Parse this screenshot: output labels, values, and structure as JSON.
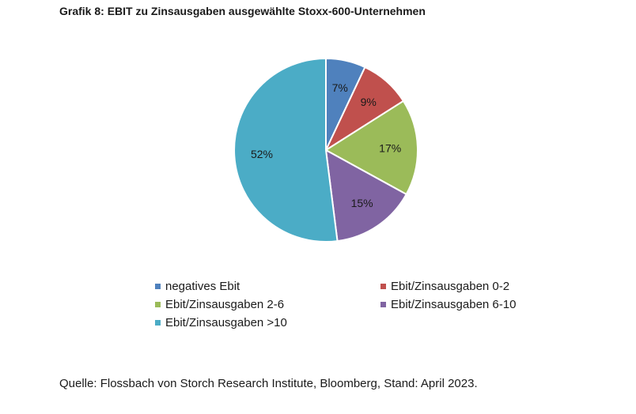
{
  "title": "Grafik 8: EBIT zu Zinsausgaben ausgewählte Stoxx-600-Unternehmen",
  "source": "Quelle: Flossbach von Storch Research Institute, Bloomberg, Stand: April 2023.",
  "chart_data": {
    "type": "pie",
    "title": "Grafik 8: EBIT zu Zinsausgaben ausgewählte Stoxx-600-Unternehmen",
    "slices": [
      {
        "label": "negatives Ebit",
        "value": 7,
        "display": "7%",
        "color": "#4f81bd"
      },
      {
        "label": "Ebit/Zinsausgaben 0-2",
        "value": 9,
        "display": "9%",
        "color": "#c0504d"
      },
      {
        "label": "Ebit/Zinsausgaben 2-6",
        "value": 17,
        "display": "17%",
        "color": "#9bbb59"
      },
      {
        "label": "Ebit/Zinsausgaben 6-10",
        "value": 15,
        "display": "15%",
        "color": "#8064a2"
      },
      {
        "label": "Ebit/Zinsausgaben >10",
        "value": 52,
        "display": "52%",
        "color": "#4bacc6"
      }
    ],
    "start_angle_deg": 0,
    "direction": "clockwise",
    "legend_position": "bottom",
    "unit": "%"
  }
}
